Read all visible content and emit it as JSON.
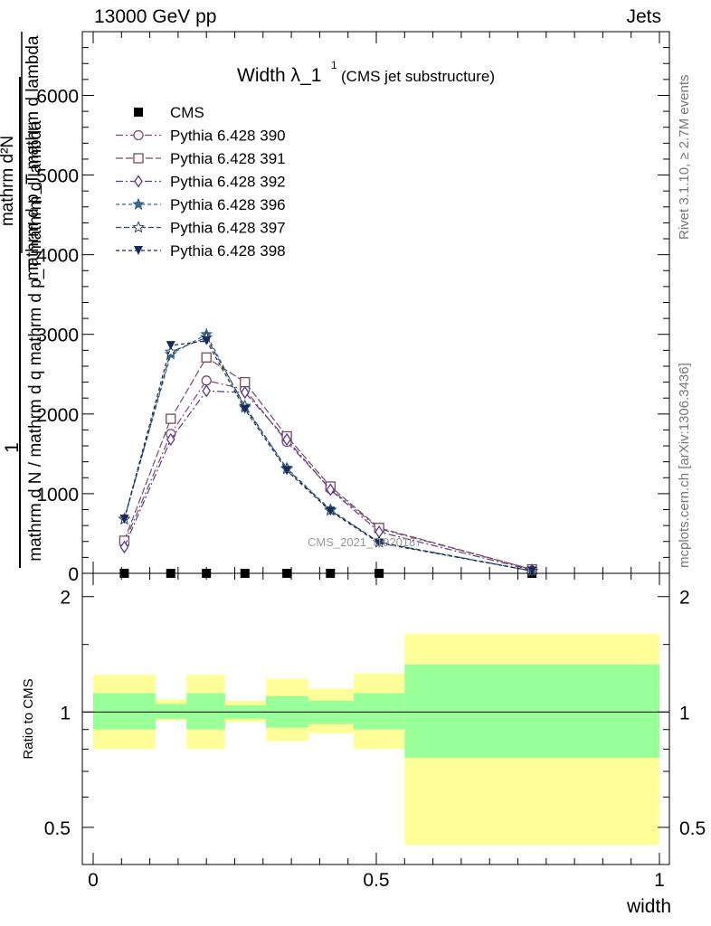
{
  "header": {
    "left": "13000 GeV pp",
    "right": "Jets"
  },
  "side_labels": {
    "rivet": "Rivet 3.1.10, ≥ 2.7M events",
    "mcplots": "mcplots.cern.ch [arXiv:1306.3436]"
  },
  "chart_data": [
    {
      "type": "line",
      "title": "Width λ_1",
      "title_superscript": "1",
      "subtitle": "(CMS jet substructure)",
      "watermark": "CMS_2021_I1920187",
      "ylabel": {
        "numerator": "1",
        "denominator": "mathrm d N / mathrm d q mathrm d p_T mathrm d lambda",
        "numerator_fraction": "mathrm d²N",
        "denominator_fraction": "mathrm d p_T mathrm d lambda"
      },
      "xlim": [
        0,
        1
      ],
      "ylim": [
        0,
        6800
      ],
      "y_ticks": [
        {
          "v": 0,
          "label": "0"
        },
        {
          "v": 1000,
          "label": "1000"
        },
        {
          "v": 2000,
          "label": "2000"
        },
        {
          "v": 3000,
          "label": "3000"
        },
        {
          "v": 4000,
          "label": "4000"
        },
        {
          "v": 5000,
          "label": "5000"
        },
        {
          "v": 6000,
          "label": "6000"
        }
      ],
      "legend_position": "top-left",
      "x": [
        0.055,
        0.137,
        0.2,
        0.268,
        0.342,
        0.419,
        0.505,
        0.775
      ],
      "series": [
        {
          "name": "CMS",
          "color": "#000000",
          "marker": "filled-square",
          "dash": "none",
          "values": [
            0,
            0,
            0,
            0,
            0,
            0,
            0,
            0
          ]
        },
        {
          "name": "Pythia 6.428 390",
          "color": "#7b4a7a",
          "marker": "open-circle",
          "dash": "8,3,2,3",
          "values": [
            380,
            1750,
            2420,
            2310,
            1650,
            1060,
            560,
            50
          ]
        },
        {
          "name": "Pythia 6.428 391",
          "color": "#7a4a5a",
          "marker": "open-square",
          "dash": "8,3",
          "values": [
            410,
            1940,
            2710,
            2400,
            1720,
            1090,
            570,
            50
          ]
        },
        {
          "name": "Pythia 6.428 392",
          "color": "#5a3a8a",
          "marker": "open-diamond",
          "dash": "8,3,2,3",
          "values": [
            330,
            1680,
            2290,
            2270,
            1680,
            1050,
            520,
            40
          ]
        },
        {
          "name": "Pythia 6.428 396",
          "color": "#3a6a8a",
          "marker": "filled-star",
          "dash": "4,3",
          "values": [
            680,
            2750,
            3000,
            2080,
            1320,
            800,
            390,
            30
          ]
        },
        {
          "name": "Pythia 6.428 397",
          "color": "#2a4a6a",
          "marker": "open-star",
          "dash": "6,3",
          "values": [
            680,
            2780,
            2960,
            2100,
            1310,
            790,
            390,
            30
          ]
        },
        {
          "name": "Pythia 6.428 398",
          "color": "#1a2a5a",
          "marker": "filled-triangle-down",
          "dash": "4,3",
          "values": [
            680,
            2860,
            2920,
            2060,
            1290,
            780,
            380,
            30
          ]
        }
      ]
    },
    {
      "type": "area",
      "ylabel": "Ratio to CMS",
      "xlabel": "width",
      "xlim": [
        0,
        1
      ],
      "ylim": [
        0.4,
        2.3
      ],
      "y_scale": "log",
      "x_ticks": [
        {
          "v": 0,
          "label": "0"
        },
        {
          "v": 0.5,
          "label": "0.5"
        },
        {
          "v": 1,
          "label": "1"
        }
      ],
      "y_ticks": [
        {
          "v": 0.5,
          "label": "0.5"
        },
        {
          "v": 1,
          "label": "1"
        },
        {
          "v": 2,
          "label": "2"
        }
      ],
      "bands": [
        {
          "x0": 0.0,
          "x1": 0.11,
          "inner": [
            0.9,
            1.12
          ],
          "outer": [
            0.8,
            1.25
          ]
        },
        {
          "x0": 0.11,
          "x1": 0.165,
          "inner": [
            0.96,
            1.05
          ],
          "outer": [
            0.95,
            1.08
          ]
        },
        {
          "x0": 0.165,
          "x1": 0.233,
          "inner": [
            0.9,
            1.12
          ],
          "outer": [
            0.8,
            1.25
          ]
        },
        {
          "x0": 0.233,
          "x1": 0.305,
          "inner": [
            0.96,
            1.04
          ],
          "outer": [
            0.94,
            1.07
          ]
        },
        {
          "x0": 0.305,
          "x1": 0.38,
          "inner": [
            0.91,
            1.1
          ],
          "outer": [
            0.84,
            1.22
          ]
        },
        {
          "x0": 0.38,
          "x1": 0.46,
          "inner": [
            0.93,
            1.07
          ],
          "outer": [
            0.88,
            1.15
          ]
        },
        {
          "x0": 0.46,
          "x1": 0.55,
          "inner": [
            0.9,
            1.12
          ],
          "outer": [
            0.8,
            1.26
          ]
        },
        {
          "x0": 0.55,
          "x1": 1.0,
          "inner": [
            0.76,
            1.33
          ],
          "outer": [
            0.45,
            1.6
          ]
        }
      ],
      "band_colors": {
        "inner": "#99ff99",
        "outer": "#ffff99"
      }
    }
  ]
}
